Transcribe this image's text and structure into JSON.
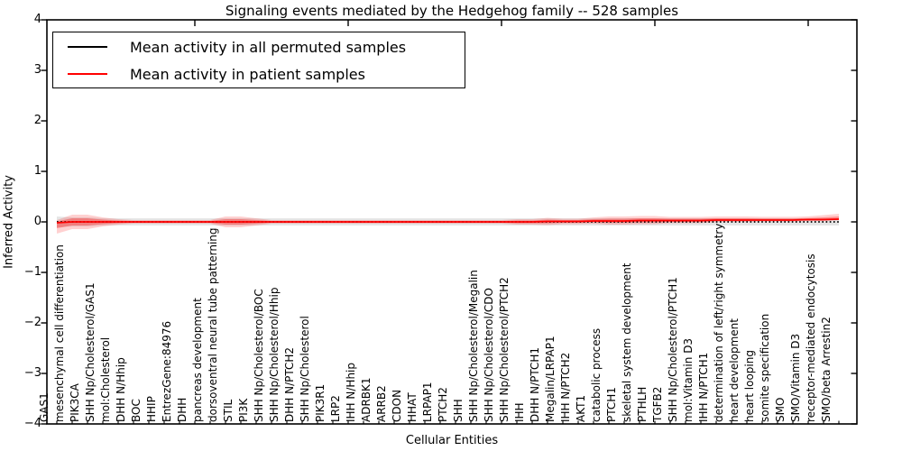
{
  "title": "Signaling events mediated by the Hedgehog family -- 528 samples",
  "xlabel": "Cellular Entities",
  "ylabel": "Inferred Activity",
  "legend": [
    {
      "label": "Mean activity in all permuted samples",
      "color": "#000000"
    },
    {
      "label": "Mean activity in patient samples",
      "color": "#ff0000"
    }
  ],
  "ytick_labels": [
    "4",
    "3",
    "2",
    "1",
    "0",
    "−1",
    "−2",
    "−3",
    "−4"
  ],
  "colors": {
    "patient_line": "#ff0000",
    "permuted_line": "#000000",
    "red_band": "#ff0000",
    "gray_band": "#000000"
  },
  "chart_data": {
    "type": "line",
    "title": "Signaling events mediated by the Hedgehog family -- 528 samples",
    "xlabel": "Cellular Entities",
    "ylabel": "Inferred Activity",
    "ylim": [
      -4,
      4
    ],
    "yticks": [
      4,
      3,
      2,
      1,
      0,
      -1,
      -2,
      -3,
      -4
    ],
    "grid": false,
    "legend_position": "upper left",
    "categories": [
      "GAS1",
      "mesenchymal cell differentiation",
      "PIK3CA",
      "SHH Np/Cholesterol/GAS1",
      "mol:Cholesterol",
      "DHH N/Hhip",
      "BOC",
      "HHIP",
      "EntrezGene:84976",
      "DHH",
      "pancreas development",
      "dorsoventral neural tube patterning",
      "STIL",
      "PI3K",
      "SHH Np/Cholesterol/BOC",
      "SHH Np/Cholesterol/Hhip",
      "DHH N/PTCH2",
      "SHH Np/Cholesterol",
      "PIK3R1",
      "LRP2",
      "IHH N/Hhip",
      "ADRBK1",
      "ARRB2",
      "CDON",
      "HHAT",
      "LRPAP1",
      "PTCH2",
      "SHH",
      "SHH Np/Cholesterol/Megalin",
      "SHH Np/Cholesterol/CDO",
      "SHH Np/Cholesterol/PTCH2",
      "IHH",
      "DHH N/PTCH1",
      "Megalin/LRPAP1",
      "IHH N/PTCH2",
      "AKT1",
      "catabolic process",
      "PTCH1",
      "skeletal system development",
      "PTHLH",
      "TGFB2",
      "SHH Np/Cholesterol/PTCH1",
      "mol:Vitamin D3",
      "IHH N/PTCH1",
      "determination of left/right symmetry",
      "heart development",
      "heart looping",
      "somite specification",
      "SMO",
      "SMO/Vitamin D3",
      "receptor-mediated endocytosis",
      "SMO/beta Arrestin2"
    ],
    "series": [
      {
        "name": "Mean activity in all permuted samples",
        "color": "#000000",
        "style": "dotted",
        "values": [
          0,
          0,
          0,
          0,
          0,
          0,
          0,
          0,
          0,
          0,
          0,
          0,
          0,
          0,
          0,
          0,
          0,
          0,
          0,
          0,
          0,
          0,
          0,
          0,
          0,
          0,
          0,
          0,
          0,
          0,
          0,
          0,
          0,
          0,
          0,
          0,
          0,
          0,
          0,
          0,
          0,
          0,
          0,
          0,
          0,
          0,
          0,
          0,
          0,
          0,
          0,
          0
        ]
      },
      {
        "name": "Mean activity in patient samples",
        "color": "#ff0000",
        "style": "solid",
        "values": [
          -0.018,
          0,
          0,
          0,
          0,
          0,
          0,
          0,
          0,
          0,
          0,
          0,
          0,
          0,
          0,
          0,
          0,
          0,
          0,
          0,
          0,
          0,
          0,
          0,
          0,
          0,
          0,
          0,
          0,
          0,
          0,
          0,
          0.009,
          0.009,
          0.009,
          0.018,
          0.018,
          0.018,
          0.027,
          0.027,
          0.027,
          0.027,
          0.027,
          0.036,
          0.036,
          0.036,
          0.036,
          0.036,
          0.036,
          0.045,
          0.045,
          0.054
        ]
      }
    ],
    "patient_band_upper": [
      0.054,
      0.143,
      0.143,
      0.089,
      0.054,
      0.036,
      0.036,
      0.036,
      0.036,
      0.036,
      0.036,
      0.107,
      0.107,
      0.071,
      0.036,
      0.036,
      0.036,
      0.036,
      0.036,
      0.036,
      0.036,
      0.036,
      0.036,
      0.036,
      0.036,
      0.036,
      0.036,
      0.036,
      0.036,
      0.036,
      0.054,
      0.054,
      0.071,
      0.054,
      0.054,
      0.071,
      0.089,
      0.089,
      0.089,
      0.089,
      0.071,
      0.071,
      0.071,
      0.071,
      0.071,
      0.071,
      0.064,
      0.064,
      0.064,
      0.064,
      0.089,
      0.107
    ],
    "patient_band_lower": [
      0.214,
      0.143,
      0.143,
      0.089,
      0.054,
      0.036,
      0.036,
      0.036,
      0.036,
      0.036,
      0.036,
      0.107,
      0.107,
      0.071,
      0.036,
      0.036,
      0.036,
      0.036,
      0.036,
      0.036,
      0.036,
      0.036,
      0.036,
      0.036,
      0.036,
      0.036,
      0.036,
      0.036,
      0.036,
      0.036,
      0.054,
      0.054,
      0.071,
      0.054,
      0.054,
      0.054,
      0.071,
      0.071,
      0.071,
      0.071,
      0.054,
      0.054,
      0.054,
      0.036,
      0.036,
      0.036,
      0.027,
      0.027,
      0.027,
      0.027,
      0.027,
      0.018
    ],
    "permuted_band_spread": [
      0.107,
      0.089,
      0.089,
      0.071,
      0.071,
      0.071,
      0.071,
      0.071,
      0.071,
      0.071,
      0.071,
      0.071,
      0.071,
      0.071,
      0.071,
      0.071,
      0.071,
      0.071,
      0.071,
      0.071,
      0.071,
      0.071,
      0.071,
      0.071,
      0.071,
      0.071,
      0.071,
      0.071,
      0.071,
      0.071,
      0.071,
      0.071,
      0.071,
      0.071,
      0.071,
      0.071,
      0.071,
      0.071,
      0.071,
      0.071,
      0.071,
      0.071,
      0.071,
      0.071,
      0.071,
      0.071,
      0.071,
      0.071,
      0.071,
      0.071,
      0.071,
      0.071
    ]
  }
}
